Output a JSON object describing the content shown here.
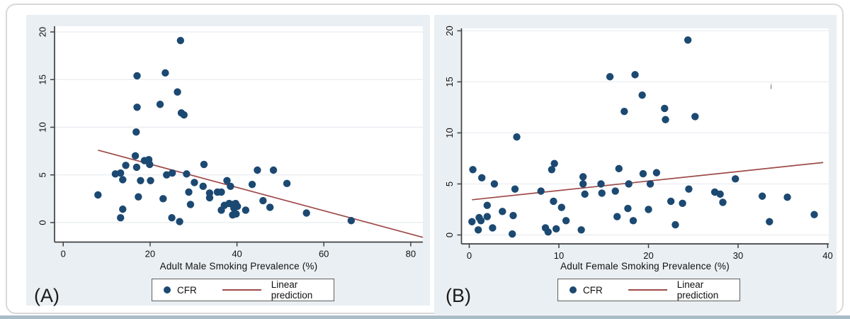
{
  "colors": {
    "marker": "#1c4972",
    "trend_line": "#9d4b49",
    "panel_background": "#e9eff3",
    "plot_background": "#ffffff",
    "axis": "#404040",
    "gridline": "#eaeef1",
    "legend_border": "#5f5f5f",
    "bottom_strip": "#a9bcc7",
    "text": "#111111"
  },
  "chart_data": [
    {
      "type": "scatter",
      "panel_label": "(A)",
      "title": "",
      "xlabel": "Adult Male Smoking Prevalence (%)",
      "ylabel": "",
      "x_ticks": [
        0,
        20,
        40,
        60,
        80
      ],
      "y_ticks": [
        0,
        5,
        10,
        15,
        20
      ],
      "xlim": [
        -2,
        82.8
      ],
      "ylim": [
        -2.05,
        20.6
      ],
      "grid": "horizontal",
      "legend": {
        "position": "bottom-center",
        "entries": [
          {
            "type": "marker",
            "label": "CFR"
          },
          {
            "type": "line",
            "label": "Linear prediction"
          }
        ]
      },
      "trend_line": {
        "x1": 8,
        "y1": 7.6,
        "x2": 82.8,
        "y2": -1.55
      },
      "points": [
        [
          8,
          2.9
        ],
        [
          12,
          5.1
        ],
        [
          13.2,
          5.2
        ],
        [
          13.7,
          4.5
        ],
        [
          14.4,
          6
        ],
        [
          16.6,
          7
        ],
        [
          16.9,
          5.8
        ],
        [
          17.8,
          4.4
        ],
        [
          18.7,
          6.5
        ],
        [
          19.7,
          6.6
        ],
        [
          19.9,
          6.1
        ],
        [
          20.1,
          4.4
        ],
        [
          17.3,
          2.7
        ],
        [
          13.7,
          1.4
        ],
        [
          13.2,
          0.5
        ],
        [
          16.8,
          9.5
        ],
        [
          17,
          12.1
        ],
        [
          17,
          15.4
        ],
        [
          22.3,
          12.4
        ],
        [
          23.5,
          15.7
        ],
        [
          26.3,
          13.7
        ],
        [
          27,
          19.1
        ],
        [
          27.2,
          11.5
        ],
        [
          27.8,
          11.3
        ],
        [
          23,
          2.5
        ],
        [
          23.8,
          5
        ],
        [
          25.1,
          5.2
        ],
        [
          25,
          0.5
        ],
        [
          26.8,
          0.1
        ],
        [
          28.4,
          5.1
        ],
        [
          28.9,
          3.2
        ],
        [
          29.3,
          1.9
        ],
        [
          30.2,
          4.2
        ],
        [
          32.2,
          3.8
        ],
        [
          32.4,
          6.1
        ],
        [
          33.7,
          3.1
        ],
        [
          33.7,
          2.6
        ],
        [
          35.5,
          3.2
        ],
        [
          36.4,
          3.2
        ],
        [
          37.7,
          4.4
        ],
        [
          38.5,
          3.8
        ],
        [
          36.4,
          1.3
        ],
        [
          37.1,
          1.8
        ],
        [
          38.2,
          2
        ],
        [
          39,
          1.9
        ],
        [
          39.7,
          2
        ],
        [
          40.1,
          1.7
        ],
        [
          39.3,
          1.5
        ],
        [
          39,
          0.8
        ],
        [
          39.8,
          0.9
        ],
        [
          42,
          1.3
        ],
        [
          43.5,
          4
        ],
        [
          44.7,
          5.5
        ],
        [
          48.4,
          5.5
        ],
        [
          51.5,
          4.1
        ],
        [
          46,
          2.3
        ],
        [
          47.6,
          1.6
        ],
        [
          56,
          1
        ],
        [
          66.3,
          0.2
        ]
      ]
    },
    {
      "type": "scatter",
      "panel_label": "(B)",
      "title": "",
      "xlabel": "Adult Female Smoking Prevalence (%)",
      "ylabel": "",
      "x_ticks": [
        0,
        10,
        20,
        30,
        40
      ],
      "y_ticks": [
        0,
        5,
        10,
        15,
        20
      ],
      "xlim": [
        -0.87,
        40.12
      ],
      "ylim": [
        -0.87,
        20.24
      ],
      "grid": "horizontal",
      "legend": {
        "position": "bottom-center",
        "entries": [
          {
            "type": "marker",
            "label": "CFR"
          },
          {
            "type": "line",
            "label": "Linear prediction"
          }
        ]
      },
      "trend_line": {
        "x1": 0.3,
        "y1": 3.45,
        "x2": 39.5,
        "y2": 7.1
      },
      "stray_mark": {
        "x": 33.6,
        "y": 14.3,
        "glyph": "i"
      },
      "points": [
        [
          0.4,
          6.4
        ],
        [
          1.4,
          5.6
        ],
        [
          2.8,
          5
        ],
        [
          5.1,
          4.5
        ],
        [
          8,
          4.3
        ],
        [
          9.5,
          7
        ],
        [
          9.2,
          6.4
        ],
        [
          12.7,
          5.7
        ],
        [
          12.7,
          5
        ],
        [
          12.9,
          4
        ],
        [
          9.4,
          3.3
        ],
        [
          2,
          2.9
        ],
        [
          2,
          1.8
        ],
        [
          3.7,
          2.3
        ],
        [
          4.9,
          1.9
        ],
        [
          10.3,
          2.7
        ],
        [
          10.8,
          1.4
        ],
        [
          0.3,
          1.3
        ],
        [
          1.1,
          1.7
        ],
        [
          1.3,
          1.4
        ],
        [
          1,
          0.5
        ],
        [
          2.6,
          0.7
        ],
        [
          4.8,
          0.1
        ],
        [
          8.5,
          0.7
        ],
        [
          8.8,
          0.3
        ],
        [
          9.7,
          0.6
        ],
        [
          12.5,
          0.5
        ],
        [
          5.3,
          9.6
        ],
        [
          14.7,
          5
        ],
        [
          14.8,
          4.1
        ],
        [
          16.3,
          4.3
        ],
        [
          16.5,
          1.8
        ],
        [
          16.7,
          6.5
        ],
        [
          17.7,
          2.6
        ],
        [
          17.8,
          5
        ],
        [
          18.3,
          1.4
        ],
        [
          19.4,
          6
        ],
        [
          20.2,
          5
        ],
        [
          20.9,
          6.1
        ],
        [
          20,
          2.5
        ],
        [
          22.5,
          3.3
        ],
        [
          23,
          1
        ],
        [
          23.8,
          3.1
        ],
        [
          24.5,
          4.5
        ],
        [
          15.7,
          15.5
        ],
        [
          17.3,
          12.1
        ],
        [
          18.5,
          15.7
        ],
        [
          19.3,
          13.7
        ],
        [
          21.8,
          12.4
        ],
        [
          21.9,
          11.3
        ],
        [
          24.4,
          19.1
        ],
        [
          25.2,
          11.6
        ],
        [
          27.4,
          4.2
        ],
        [
          28,
          4
        ],
        [
          28.3,
          3.2
        ],
        [
          29.7,
          5.5
        ],
        [
          32.7,
          3.8
        ],
        [
          33.5,
          1.3
        ],
        [
          35.5,
          3.7
        ],
        [
          38.5,
          2
        ]
      ]
    }
  ]
}
